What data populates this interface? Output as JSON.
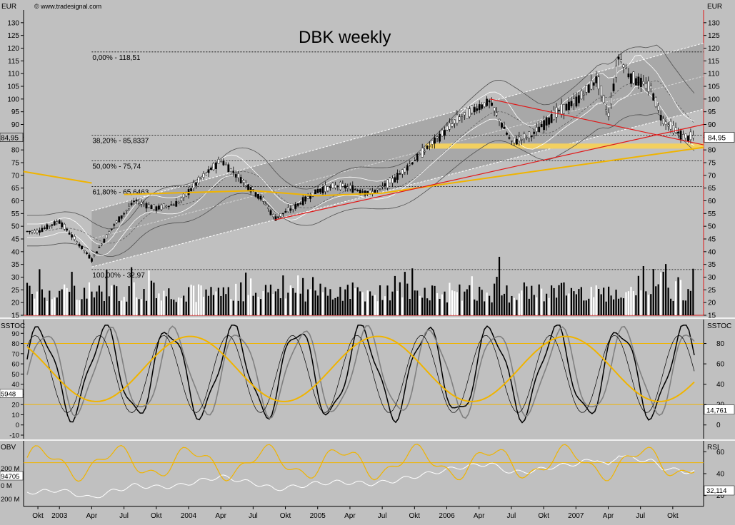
{
  "header": {
    "copyright": "© www.tradesignal.com",
    "title": "DBK weekly",
    "currency_left": "EUR",
    "currency_right": "EUR"
  },
  "colors": {
    "background": "#c0c0c0",
    "channel": "#a8a8a8",
    "gold": "#f0b400",
    "trend": "#e01818",
    "white": "#ffffff",
    "black": "#000000",
    "gray": "#808080"
  },
  "chart_data": [
    {
      "type": "candlestick",
      "title": "DBK weekly",
      "ylabel": "EUR",
      "ylim": [
        15,
        135
      ],
      "y_ticks": [
        15,
        20,
        25,
        30,
        35,
        40,
        45,
        50,
        55,
        60,
        65,
        70,
        75,
        80,
        85,
        90,
        95,
        100,
        105,
        110,
        115,
        120,
        125,
        130
      ],
      "x_tick_labels": [
        "Okt",
        "2003",
        "Apr",
        "Jul",
        "Okt",
        "2004",
        "Apr",
        "Jul",
        "Okt",
        "2005",
        "Apr",
        "Jul",
        "Okt",
        "2006",
        "Apr",
        "Jul",
        "Okt",
        "2007",
        "Apr",
        "Jul",
        "Okt"
      ],
      "last_price_label": "84,95",
      "fibonacci_levels": [
        {
          "label": "0,00% - 118,51",
          "value": 118.51
        },
        {
          "label": "38,20% - 85,8337",
          "value": 85.8337
        },
        {
          "label": "50,00% - 75,74",
          "value": 75.74
        },
        {
          "label": "61,80% - 65,6463",
          "value": 65.6463
        },
        {
          "label": "100,00% - 32,97",
          "value": 32.97
        }
      ],
      "price_anchors": {
        "x": [
          "2002-10",
          "2002-12",
          "2003-02",
          "2003-03",
          "2003-05",
          "2003-07",
          "2003-09",
          "2003-11",
          "2004-01",
          "2004-03",
          "2004-05",
          "2004-07",
          "2004-08",
          "2004-10",
          "2004-12",
          "2005-02",
          "2005-04",
          "2005-05",
          "2005-07",
          "2005-09",
          "2005-11",
          "2006-01",
          "2006-03",
          "2006-04",
          "2006-06",
          "2006-08",
          "2006-10",
          "2006-12",
          "2007-02",
          "2007-03",
          "2007-04",
          "2007-05",
          "2007-07",
          "2007-08",
          "2007-10"
        ],
        "close": [
          48,
          52,
          42,
          37,
          50,
          60,
          57,
          59,
          68,
          76,
          68,
          60,
          53,
          58,
          64,
          66,
          64,
          63,
          68,
          76,
          84,
          92,
          97,
          99,
          83,
          86,
          94,
          99,
          108,
          93,
          117,
          109,
          104,
          92,
          85
        ]
      },
      "volume_note": "volume bars on same axis, range approx 15-40"
    },
    {
      "type": "line",
      "title": "SSTOC",
      "ylim": [
        -10,
        100
      ],
      "y_ticks": [
        -10,
        0,
        10,
        20,
        30,
        40,
        50,
        60,
        70,
        80,
        90
      ],
      "y_ticks_right": [
        0,
        20,
        40,
        60,
        80
      ],
      "reference_lines": [
        20,
        80
      ],
      "left_value_label": "5948",
      "right_value_label": "14,761"
    },
    {
      "type": "line",
      "title": "OBV",
      "right_title": "RSI",
      "y_ticks_left": [
        "200 M",
        "0 M",
        "200 M"
      ],
      "y_ticks_right": [
        20,
        40,
        60
      ],
      "reference_line_rsi": 50,
      "left_value_label": "94705",
      "right_value_label": "32,114"
    }
  ]
}
